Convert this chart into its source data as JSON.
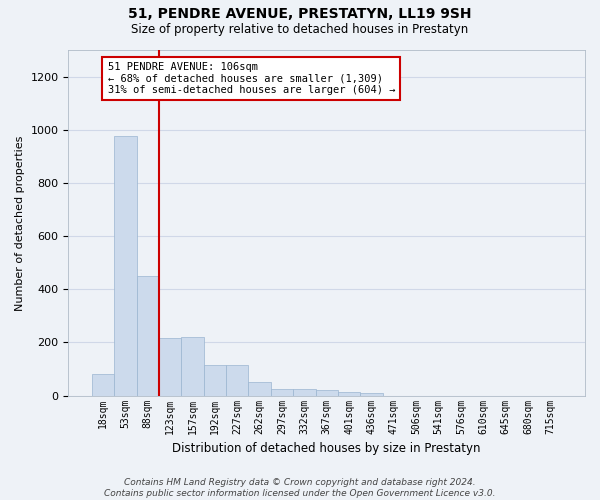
{
  "title": "51, PENDRE AVENUE, PRESTATYN, LL19 9SH",
  "subtitle": "Size of property relative to detached houses in Prestatyn",
  "xlabel": "Distribution of detached houses by size in Prestatyn",
  "ylabel": "Number of detached properties",
  "bar_labels": [
    "18sqm",
    "53sqm",
    "88sqm",
    "123sqm",
    "157sqm",
    "192sqm",
    "227sqm",
    "262sqm",
    "297sqm",
    "332sqm",
    "367sqm",
    "401sqm",
    "436sqm",
    "471sqm",
    "506sqm",
    "541sqm",
    "576sqm",
    "610sqm",
    "645sqm",
    "680sqm",
    "715sqm"
  ],
  "bar_heights": [
    80,
    975,
    450,
    215,
    220,
    115,
    115,
    50,
    25,
    25,
    20,
    15,
    10,
    0,
    0,
    0,
    0,
    0,
    0,
    0,
    0
  ],
  "bar_color": "#ccdaec",
  "bar_edge_color": "#9ab5d0",
  "grid_color": "#d0d8e8",
  "bg_color": "#eef2f7",
  "annotation_text": "51 PENDRE AVENUE: 106sqm\n← 68% of detached houses are smaller (1,309)\n31% of semi-detached houses are larger (604) →",
  "annotation_box_color": "#ffffff",
  "annotation_box_edge": "#cc0000",
  "redline_color": "#cc0000",
  "redline_x": 2.5,
  "ylim": [
    0,
    1300
  ],
  "yticks": [
    0,
    200,
    400,
    600,
    800,
    1000,
    1200
  ],
  "footer": "Contains HM Land Registry data © Crown copyright and database right 2024.\nContains public sector information licensed under the Open Government Licence v3.0."
}
